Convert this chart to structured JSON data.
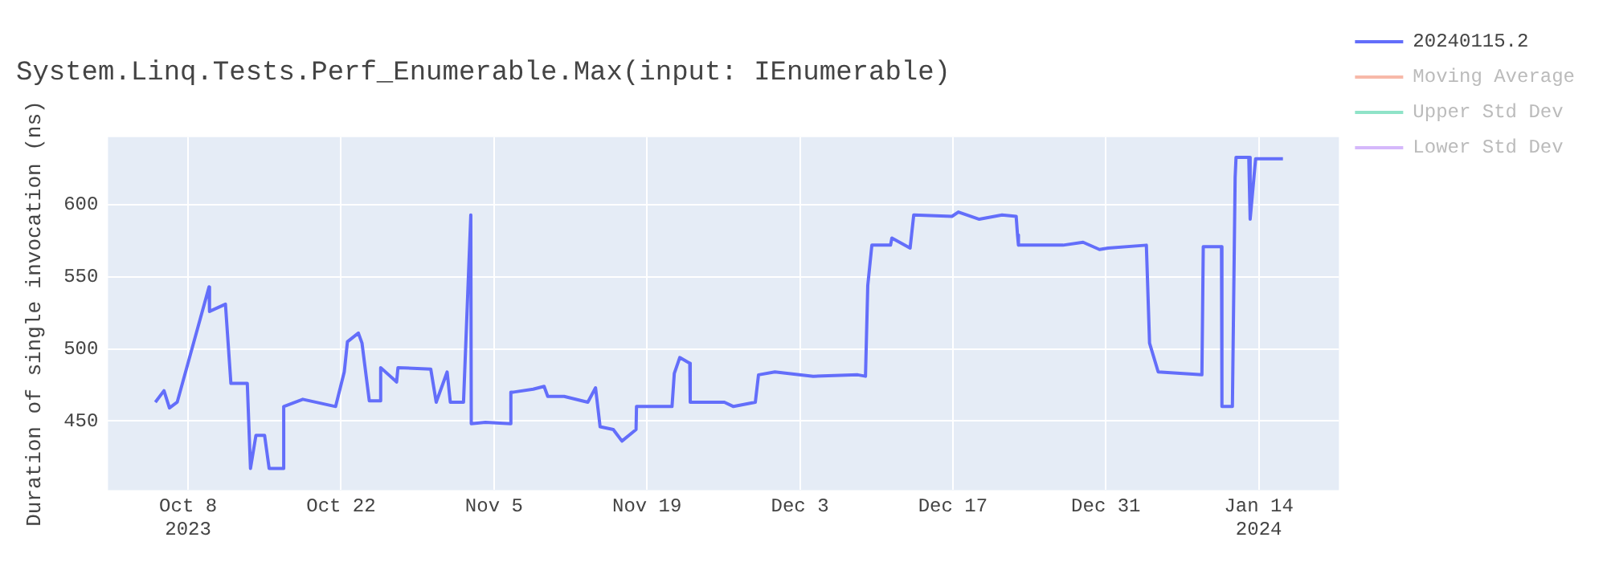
{
  "chart_data": {
    "type": "line",
    "title": "System.Linq.Tests.Perf_Enumerable.Max(input: IEnumerable)",
    "ylabel": "Duration of single invocation (ns)",
    "x": [
      "2023-10-05",
      "2023-10-05T19:00",
      "2023-10-06T07:00",
      "2023-10-07",
      "2023-10-09T22:00",
      "2023-10-09T23:00",
      "2023-10-11T10:00",
      "2023-10-11T22:00",
      "2023-10-13T10:00",
      "2023-10-13T17:00",
      "2023-10-14T05:00",
      "2023-10-15",
      "2023-10-15T10:00",
      "2023-10-16T17:00",
      "2023-10-16T18:00",
      "2023-10-18T12:00",
      "2023-10-21T12:00",
      "2023-10-22T07:00",
      "2023-10-22T14:00",
      "2023-10-23T14:00",
      "2023-10-23T22:00",
      "2023-10-24T14:00",
      "2023-10-25T14:00",
      "2023-10-25T15:00",
      "2023-10-27T02:00",
      "2023-10-27T05:00",
      "2023-10-30T05:00",
      "2023-10-30T17:00",
      "2023-10-31T17:00",
      "2023-11-01",
      "2023-11-02T05:00",
      "2023-11-02T21:00",
      "2023-11-02T22:00",
      "2023-11-04T05:00",
      "2023-11-06T12:00",
      "2023-11-06T13:00",
      "2023-11-06T19:00",
      "2023-11-08T14:00",
      "2023-11-09T14:00",
      "2023-11-09T22:00",
      "2023-11-11T10:00",
      "2023-11-13T14:00",
      "2023-11-14T07:00",
      "2023-11-14T17:00",
      "2023-11-15T22:00",
      "2023-11-16T17:00",
      "2023-11-18",
      "2023-11-18T01:00",
      "2023-11-21T07:00",
      "2023-11-21T12:00",
      "2023-11-22",
      "2023-11-22T22:00",
      "2023-11-22T23:00",
      "2023-11-26T02:00",
      "2023-11-26T22:00",
      "2023-11-28T22:00",
      "2023-11-29T05:00",
      "2023-11-30T17:00",
      "2023-12-04T05:00",
      "2023-12-08T07:00",
      "2023-12-09",
      "2023-12-09T05:00",
      "2023-12-09T14:00",
      "2023-12-11T07:00",
      "2023-12-11T10:00",
      "2023-12-13T02:00",
      "2023-12-13T10:00",
      "2023-12-16T22:00",
      "2023-12-17T12:00",
      "2023-12-19T10:00",
      "2023-12-21T12:00",
      "2023-12-22T19:00",
      "2023-12-22T22:00",
      "2023-12-23",
      "2023-12-27T02:00",
      "2023-12-28T22:00",
      "2023-12-30T10:00",
      "2023-12-31T05:00",
      "2024-01-03T17:00",
      "2024-01-04",
      "2024-01-04T19:00",
      "2024-01-08T19:00",
      "2024-01-08T22:00",
      "2024-01-10T14:00",
      "2024-01-10T15:00",
      "2024-01-11T14:00",
      "2024-01-11T20:00",
      "2024-01-11T22:00",
      "2024-01-13T02:00",
      "2024-01-13T05:00",
      "2024-01-13T17:00",
      "2024-01-16T05:00"
    ],
    "xlim": [
      "2023-09-30T16:00",
      "2024-01-21T08:00"
    ],
    "xticks": [
      {
        "value": "2023-10-08",
        "label": "Oct 8\n2023"
      },
      {
        "value": "2023-10-22",
        "label": "Oct 22"
      },
      {
        "value": "2023-11-05",
        "label": "Nov 5"
      },
      {
        "value": "2023-11-19",
        "label": "Nov 19"
      },
      {
        "value": "2023-12-03",
        "label": "Dec 3"
      },
      {
        "value": "2023-12-17",
        "label": "Dec 17"
      },
      {
        "value": "2023-12-31",
        "label": "Dec 31"
      },
      {
        "value": "2024-01-14",
        "label": "Jan 14\n2024"
      }
    ],
    "ylim": [
      402,
      647
    ],
    "yticks": [
      450,
      500,
      550,
      600
    ],
    "grid": true,
    "legend": "top right",
    "marker": "none",
    "line_style": "solid",
    "series": [
      {
        "name": "20240115.2",
        "color": "#636efa",
        "values": [
          463,
          471,
          459,
          463,
          543,
          526,
          531,
          476,
          476,
          417,
          440,
          440,
          417,
          417,
          460,
          465,
          460,
          484,
          505,
          511,
          504,
          464,
          464,
          487,
          477,
          487,
          486,
          463,
          484,
          463,
          463,
          593,
          448,
          449,
          448,
          470,
          470,
          472,
          474,
          467,
          467,
          463,
          473,
          446,
          444,
          436,
          444,
          460,
          460,
          483,
          494,
          490,
          463,
          463,
          460,
          463,
          482,
          484,
          481,
          482,
          481,
          544,
          572,
          572,
          577,
          570,
          593,
          592,
          595,
          590,
          593,
          592,
          579,
          572,
          572,
          574,
          569,
          570,
          572,
          504,
          484,
          482,
          571,
          571,
          460,
          460,
          619,
          633,
          633,
          590,
          632,
          632
        ]
      },
      {
        "name": "Moving Average",
        "color": "#f7b9a9",
        "values": [
          null,
          null,
          null,
          null,
          null,
          null,
          null,
          null,
          null,
          null,
          null,
          null,
          null,
          null,
          null,
          null,
          null,
          null,
          null,
          null,
          null,
          null,
          null,
          null,
          null,
          null,
          null,
          null,
          null,
          null,
          null,
          null,
          null,
          null,
          null,
          null,
          null,
          null,
          null,
          null,
          null,
          null,
          null,
          null,
          null,
          null,
          null,
          null,
          null,
          null,
          null,
          null,
          null,
          null,
          null,
          null,
          null,
          null,
          null,
          null,
          null,
          null,
          null,
          null,
          null,
          null,
          null,
          null,
          null,
          null,
          null,
          null,
          null,
          null,
          null,
          null,
          null,
          null,
          null,
          null,
          null,
          null,
          null,
          null,
          null,
          null,
          null,
          null,
          null,
          null,
          null,
          null
        ]
      },
      {
        "name": "Upper Std Dev",
        "color": "#8fe3c8",
        "values": [
          null,
          null,
          null,
          null,
          null,
          null,
          null,
          null,
          null,
          null,
          null,
          null,
          null,
          null,
          null,
          null,
          null,
          null,
          null,
          null,
          null,
          null,
          null,
          null,
          null,
          null,
          null,
          null,
          null,
          null,
          null,
          null,
          null,
          null,
          null,
          null,
          null,
          null,
          null,
          null,
          null,
          null,
          null,
          null,
          null,
          null,
          null,
          null,
          null,
          null,
          null,
          null,
          null,
          null,
          null,
          null,
          null,
          null,
          null,
          null,
          null,
          null,
          null,
          null,
          null,
          null,
          null,
          null,
          null,
          null,
          null,
          null,
          null,
          null,
          null,
          null,
          null,
          null,
          null,
          null,
          null,
          null,
          null,
          null,
          null,
          null,
          null,
          null,
          null,
          null,
          null,
          null
        ]
      },
      {
        "name": "Lower Std Dev",
        "color": "#d5b8fb",
        "values": [
          null,
          null,
          null,
          null,
          null,
          null,
          null,
          null,
          null,
          null,
          null,
          null,
          null,
          null,
          null,
          null,
          null,
          null,
          null,
          null,
          null,
          null,
          null,
          null,
          null,
          null,
          null,
          null,
          null,
          null,
          null,
          null,
          null,
          null,
          null,
          null,
          null,
          null,
          null,
          null,
          null,
          null,
          null,
          null,
          null,
          null,
          null,
          null,
          null,
          null,
          null,
          null,
          null,
          null,
          null,
          null,
          null,
          null,
          null,
          null,
          null,
          null,
          null,
          null,
          null,
          null,
          null,
          null,
          null,
          null,
          null,
          null,
          null,
          null,
          null,
          null,
          null,
          null,
          null,
          null,
          null,
          null,
          null,
          null,
          null,
          null,
          null,
          null,
          null,
          null,
          null,
          null
        ]
      }
    ]
  }
}
